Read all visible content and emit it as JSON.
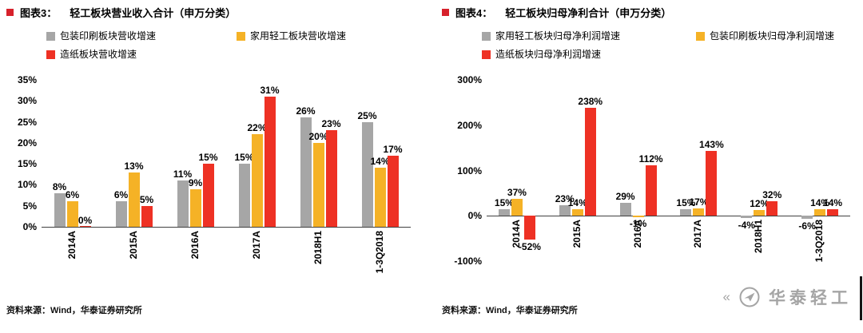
{
  "accent": {
    "title_square": "#d7212b"
  },
  "watermark": {
    "text": "华泰轻工",
    "color": "#a5a5a5"
  },
  "panels": [
    {
      "fig_label": "图表3：",
      "title": "轻工板块营业收入合计（申万分类）",
      "source": "资料来源：Wind，华泰证券研究所"
    },
    {
      "fig_label": "图表4：",
      "title": "轻工板块归母净利合计（申万分类）",
      "source": "资料来源：Wind，华泰证券研究所"
    }
  ],
  "chart_data": [
    {
      "type": "bar",
      "title": "轻工板块营业收入合计（申万分类）",
      "categories": [
        "2014A",
        "2015A",
        "2016A",
        "2017A",
        "2018H1",
        "1-3Q2018"
      ],
      "series": [
        {
          "name": "包装印刷板块营收增速",
          "color": "#a6a6a6",
          "values": [
            8,
            6,
            11,
            15,
            26,
            25
          ]
        },
        {
          "name": "家用轻工板块营收增速",
          "color": "#f5b226",
          "values": [
            6,
            13,
            9,
            22,
            20,
            14
          ]
        },
        {
          "name": "造纸板块营收增速",
          "color": "#ee3124",
          "values": [
            0,
            5,
            15,
            31,
            23,
            17
          ]
        }
      ],
      "xlabel": "",
      "ylabel": "",
      "ylim": [
        0,
        35
      ],
      "yticks": [
        0,
        5,
        10,
        15,
        20,
        25,
        30,
        35
      ],
      "value_suffix": "%",
      "grid": false,
      "data_labels": true,
      "legend_position": "top-left"
    },
    {
      "type": "bar",
      "title": "轻工板块归母净利合计（申万分类）",
      "categories": [
        "2014A",
        "2015A",
        "2016A",
        "2017A",
        "2018H1",
        "1-3Q2018"
      ],
      "series": [
        {
          "name": "家用轻工板块归母净利润增速",
          "color": "#a6a6a6",
          "values": [
            15,
            23,
            29,
            15,
            -4,
            -6
          ]
        },
        {
          "name": "包装印刷板块归母净利润增速",
          "color": "#f5b226",
          "values": [
            37,
            14,
            -1,
            17,
            12,
            14
          ]
        },
        {
          "name": "造纸板块归母净利润增速",
          "color": "#ee3124",
          "values": [
            -52,
            238,
            112,
            143,
            32,
            14
          ]
        }
      ],
      "xlabel": "",
      "ylabel": "",
      "ylim": [
        -100,
        300
      ],
      "yticks": [
        -100,
        0,
        100,
        200,
        300
      ],
      "value_suffix": "%",
      "grid": false,
      "data_labels": true,
      "legend_position": "top-left"
    }
  ]
}
